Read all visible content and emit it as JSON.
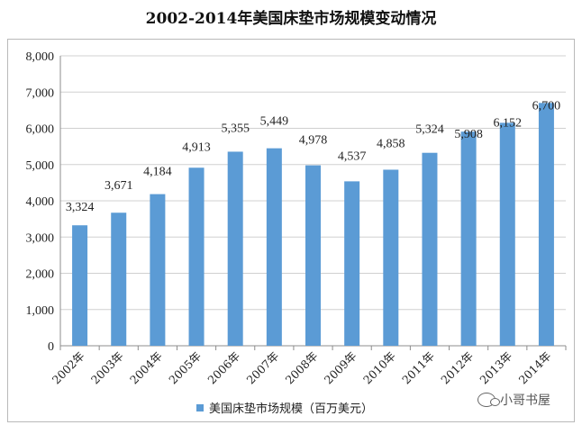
{
  "chart_data": {
    "type": "bar",
    "title": "2002-2014年美国床垫市场规模变动情况",
    "categories": [
      "2002年",
      "2003年",
      "2004年",
      "2005年",
      "2006年",
      "2007年",
      "2008年",
      "2009年",
      "2010年",
      "2011年",
      "2012年",
      "2013年",
      "2014年"
    ],
    "series": [
      {
        "name": "美国床垫市场规模（百万美元）",
        "values": [
          3324,
          3671,
          4184,
          4913,
          5355,
          5449,
          4978,
          4537,
          4858,
          5324,
          5908,
          6152,
          6700
        ],
        "labels": [
          "3,324",
          "3,671",
          "4,184",
          "4,913",
          "5,355",
          "5,449",
          "4,978",
          "4,537",
          "4,858",
          "5,324",
          "5,908",
          "6,152",
          "6,700"
        ]
      }
    ],
    "ylim": [
      0,
      8000
    ],
    "yticks": [
      0,
      1000,
      2000,
      3000,
      4000,
      5000,
      6000,
      7000,
      8000
    ],
    "ytick_labels": [
      "0",
      "1,000",
      "2,000",
      "3,000",
      "4,000",
      "5,000",
      "6,000",
      "7,000",
      "8,000"
    ],
    "grid": true,
    "legend_position": "bottom",
    "color": "#5B9BD5"
  },
  "watermark": {
    "text": "小哥书屋",
    "icon": "wechat-icon"
  }
}
